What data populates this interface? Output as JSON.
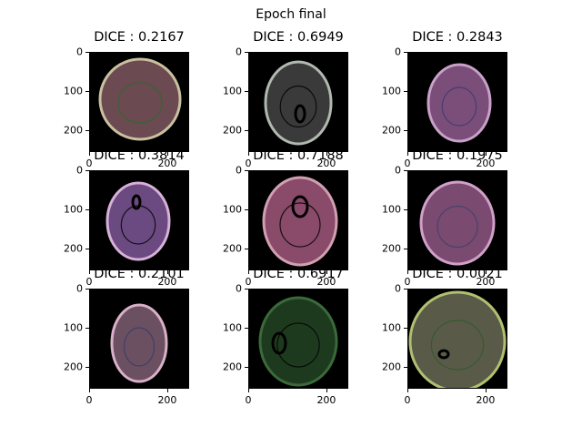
{
  "figure": {
    "title": "Epoch final"
  },
  "chart_data": {
    "type": "image-grid",
    "title": "Epoch final",
    "rows": 3,
    "cols": 3,
    "x_ticks": [
      "0",
      "200"
    ],
    "y_ticks": [
      "0",
      "100",
      "200"
    ],
    "x_tick_values": [
      0,
      200
    ],
    "y_tick_values": [
      0,
      100,
      200
    ],
    "image_extent": [
      0,
      256
    ],
    "panels": [
      {
        "label": "DICE : 0.2167",
        "dice": 0.2167,
        "tint": "#6b4a52",
        "rim": "#c9c0a0",
        "outline": "#2a6a2a"
      },
      {
        "label": "DICE : 0.6949",
        "dice": 0.6949,
        "tint": "#3a3a3a",
        "rim": "#b0b8b0",
        "outline": "#000000"
      },
      {
        "label": "DICE : 0.2843",
        "dice": 0.2843,
        "tint": "#7a4e78",
        "rim": "#c8a0c8",
        "outline": "#3a3a70"
      },
      {
        "label": "DICE : 0.3814",
        "dice": 0.3814,
        "tint": "#6a4a80",
        "rim": "#d8b0d8",
        "outline": "#000000"
      },
      {
        "label": "DICE : 0.7188",
        "dice": 0.7188,
        "tint": "#8a4a6a",
        "rim": "#d0a0b0",
        "outline": "#000000"
      },
      {
        "label": "DICE : 0.1975",
        "dice": 0.1975,
        "tint": "#7a4a70",
        "rim": "#d0a0c8",
        "outline": "#40406a"
      },
      {
        "label": "DICE : 0.2101",
        "dice": 0.2101,
        "tint": "#6a5060",
        "rim": "#d8b0c8",
        "outline": "#3a3a6a"
      },
      {
        "label": "DICE : 0.6917",
        "dice": 0.6917,
        "tint": "#1e3a1e",
        "rim": "#3a6a3a",
        "outline": "#000000"
      },
      {
        "label": "DICE : 0.0021",
        "dice": 0.0021,
        "tint": "#5a5a48",
        "rim": "#b0c070",
        "outline": "#2a5a2a"
      }
    ]
  }
}
